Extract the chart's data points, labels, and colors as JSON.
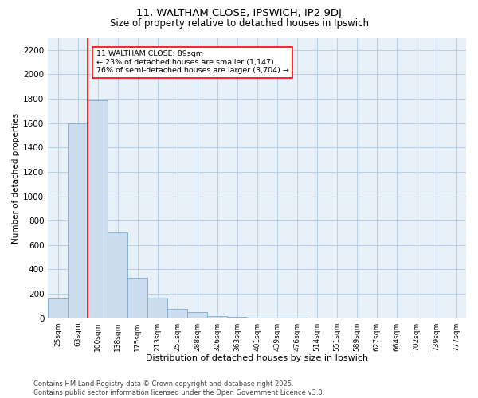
{
  "title1": "11, WALTHAM CLOSE, IPSWICH, IP2 9DJ",
  "title2": "Size of property relative to detached houses in Ipswich",
  "xlabel": "Distribution of detached houses by size in Ipswich",
  "ylabel": "Number of detached properties",
  "annotation_line1": "11 WALTHAM CLOSE: 89sqm",
  "annotation_line2": "← 23% of detached houses are smaller (1,147)",
  "annotation_line3": "76% of semi-detached houses are larger (3,704) →",
  "categories": [
    "25sqm",
    "63sqm",
    "100sqm",
    "138sqm",
    "175sqm",
    "213sqm",
    "251sqm",
    "288sqm",
    "326sqm",
    "363sqm",
    "401sqm",
    "439sqm",
    "476sqm",
    "514sqm",
    "551sqm",
    "589sqm",
    "627sqm",
    "664sqm",
    "702sqm",
    "739sqm",
    "777sqm"
  ],
  "values": [
    160,
    1600,
    1790,
    700,
    330,
    165,
    75,
    50,
    20,
    10,
    5,
    5,
    5,
    0,
    0,
    0,
    0,
    0,
    0,
    0,
    0
  ],
  "bar_color": "#ccddef",
  "bar_edge_color": "#7aaad0",
  "red_line_x": 1.5,
  "ylim": [
    0,
    2300
  ],
  "yticks": [
    0,
    200,
    400,
    600,
    800,
    1000,
    1200,
    1400,
    1600,
    1800,
    2000,
    2200
  ],
  "grid_color": "#b8cfe8",
  "background_color": "#e8f0f8",
  "footer1": "Contains HM Land Registry data © Crown copyright and database right 2025.",
  "footer2": "Contains public sector information licensed under the Open Government Licence v3.0."
}
